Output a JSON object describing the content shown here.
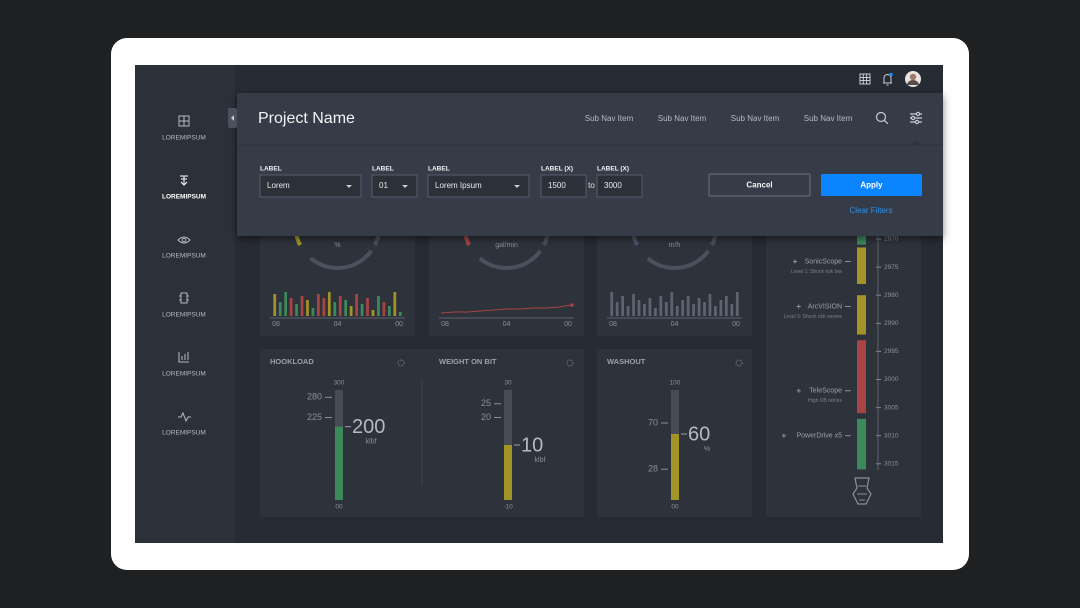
{
  "header": {
    "title": "Project Name",
    "sub_nav": [
      "Sub Nav Item",
      "Sub Nav Item",
      "Sub Nav Item",
      "Sub Nav Item"
    ]
  },
  "sidebar": [
    "LOREMIPSUM",
    "LOREMIPSUM",
    "LOREMIPSUM",
    "LOREMIPSUM",
    "LOREMIPSUM",
    "LOREMIPSUM"
  ],
  "filters": {
    "fields": [
      {
        "label": "LABEL",
        "value": "Lorem"
      },
      {
        "label": "LABEL",
        "value": "01"
      },
      {
        "label": "LABEL",
        "value": "Lorem Ipsum"
      },
      {
        "label": "LABEL (X)",
        "value": "1500"
      },
      {
        "label": "LABEL (X)",
        "value": "3000"
      }
    ],
    "to": "to",
    "cancel": "Cancel",
    "apply": "Apply",
    "clear": "Clear Filters"
  },
  "top_gauges": [
    {
      "unit": "%",
      "color": "#a39428"
    },
    {
      "unit": "gal/min",
      "color": "#a84444"
    },
    {
      "unit": "m/h",
      "color": "#4a5668"
    }
  ],
  "mini_charts": [
    {
      "type": "bar",
      "x_labels": [
        "08",
        "04",
        "00"
      ],
      "ylim": [
        0,
        30
      ],
      "values": [
        22,
        14,
        24,
        18,
        12,
        20,
        16,
        8,
        22,
        18,
        24,
        14,
        20,
        16,
        10,
        22,
        12,
        18,
        6,
        20,
        14,
        10,
        24,
        4
      ],
      "colors": [
        "#a39428",
        "#3c8a5c",
        "#3c8a5c",
        "#a84444",
        "#3c8a5c",
        "#a84444",
        "#a39428",
        "#3c8a5c",
        "#a84444",
        "#a84444",
        "#a39428",
        "#3c8a5c",
        "#a84444",
        "#3c8a5c",
        "#a39428",
        "#a84444",
        "#3c8a5c",
        "#a84444",
        "#a39428",
        "#3c8a5c",
        "#a84444",
        "#3c8a5c",
        "#a39428",
        "#3c8a5c"
      ]
    },
    {
      "type": "line",
      "x_labels": [
        "08",
        "04",
        "00"
      ],
      "ylim": [
        0,
        30
      ],
      "color": "#a84444",
      "values": [
        3,
        4,
        4,
        5,
        6,
        7,
        7,
        8,
        8,
        9,
        11
      ]
    },
    {
      "type": "bar",
      "x_labels": [
        "08",
        "04",
        "00"
      ],
      "ylim": [
        0,
        30
      ],
      "values": [
        24,
        14,
        20,
        10,
        22,
        16,
        12,
        18,
        8,
        20,
        14,
        24,
        10,
        16,
        20,
        12,
        18,
        14,
        22,
        10,
        16,
        20,
        12,
        24
      ],
      "colors": [
        "#5d636f",
        "#5d636f",
        "#5d636f",
        "#5d636f",
        "#5d636f",
        "#5d636f",
        "#5d636f",
        "#5d636f",
        "#5d636f",
        "#5d636f",
        "#5d636f",
        "#5d636f",
        "#5d636f",
        "#5d636f",
        "#5d636f",
        "#5d636f",
        "#5d636f",
        "#5d636f",
        "#5d636f",
        "#5d636f",
        "#5d636f",
        "#5d636f",
        "#5d636f",
        "#5d636f"
      ]
    }
  ],
  "gauges": [
    {
      "title": "HOOKLOAD",
      "value": 200,
      "unit": "klbf",
      "ylim": [
        0,
        300
      ],
      "color": "#3c8a5c",
      "ticks": [
        {
          "value": 0,
          "label": "00"
        },
        225,
        280,
        300
      ]
    },
    {
      "title": "WEIGHT ON BIT",
      "value": 10,
      "unit": "klbf",
      "ylim": [
        -10,
        30
      ],
      "color": "#a39428",
      "ticks": [
        -10,
        20,
        25,
        30
      ]
    },
    {
      "title": "WASHOUT",
      "value": 60,
      "unit": "%",
      "ylim": [
        0,
        100
      ],
      "color": "#a39428",
      "ticks": [
        {
          "value": 0,
          "label": "00"
        },
        28,
        70,
        100
      ]
    }
  ],
  "depth": {
    "ticks": [
      2970,
      2975,
      2980,
      2990,
      2995,
      3000,
      3005,
      3010,
      3015
    ],
    "segments": [
      {
        "start": 2968,
        "end": 2971,
        "color": "#3c8a5c"
      },
      {
        "start": 2971.5,
        "end": 2978,
        "color": "#a39428"
      },
      {
        "start": 2980,
        "end": 2992,
        "color": "#a39428"
      },
      {
        "start": 2993,
        "end": 3006,
        "color": "#a84444"
      },
      {
        "start": 3007,
        "end": 3016,
        "color": "#3c8a5c"
      }
    ],
    "tools": [
      {
        "name": "SonicScope",
        "note": "Level 1: Shock risk low",
        "depth": 2974
      },
      {
        "name": "ArcVISION",
        "note": "Level 3: Shock risk severe",
        "depth": 2984
      },
      {
        "name": "TeleScope",
        "note": "High DB retries",
        "depth": 3002
      },
      {
        "name": "PowerDrive x5",
        "depth": 3010
      }
    ]
  }
}
